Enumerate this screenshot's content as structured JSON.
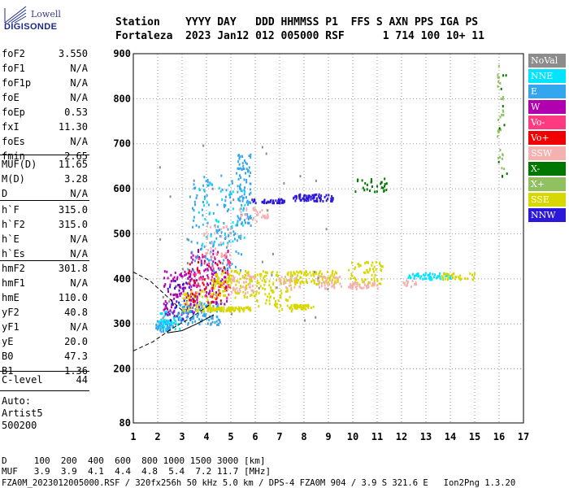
{
  "logo": {
    "line1": "Lowell",
    "line2": "DIGISONDE"
  },
  "header": {
    "line1": "Station    YYYY DAY   DDD HHMMSS P1  FFS S AXN PPS IGA PS",
    "line2": "Fortaleza  2023 Jan12 012 005000 RSF      1 714 100 10+ 11"
  },
  "params_group1": [
    {
      "name": "foF2",
      "value": "3.550"
    },
    {
      "name": "foF1",
      "value": "N/A"
    },
    {
      "name": "foF1p",
      "value": "N/A"
    },
    {
      "name": "foE",
      "value": "N/A"
    },
    {
      "name": "foEp",
      "value": "0.53"
    },
    {
      "name": "fxI",
      "value": "11.30"
    },
    {
      "name": "foEs",
      "value": "N/A"
    },
    {
      "name": "fmin",
      "value": "2.65"
    }
  ],
  "params_group2": [
    {
      "name": "MUF(D)",
      "value": "11.65"
    },
    {
      "name": "M(D)",
      "value": "3.28"
    },
    {
      "name": "D",
      "value": "N/A"
    }
  ],
  "params_group3": [
    {
      "name": "h`F",
      "value": "315.0"
    },
    {
      "name": "h`F2",
      "value": "315.0"
    },
    {
      "name": "h`E",
      "value": "N/A"
    },
    {
      "name": "h`Es",
      "value": "N/A"
    }
  ],
  "params_group4": [
    {
      "name": "hmF2",
      "value": "301.8"
    },
    {
      "name": "hmF1",
      "value": "N/A"
    },
    {
      "name": "hmE",
      "value": "110.0"
    },
    {
      "name": "yF2",
      "value": "40.8"
    },
    {
      "name": "yF1",
      "value": "N/A"
    },
    {
      "name": "yE",
      "value": "20.0"
    },
    {
      "name": "B0",
      "value": "47.3"
    },
    {
      "name": "B1",
      "value": "1.36"
    }
  ],
  "clevel": {
    "name": "C-level",
    "value": "44"
  },
  "autoscale": {
    "line1": "Auto:",
    "line2": "Artist5",
    "line3": "500200"
  },
  "legend": [
    {
      "label": "NoVal",
      "color": "#8c8c8c"
    },
    {
      "label": "NNE",
      "color": "#00e5ff"
    },
    {
      "label": "E",
      "color": "#33a6f0"
    },
    {
      "label": "W",
      "color": "#b000b0"
    },
    {
      "label": "Vo-",
      "color": "#ff3a80"
    },
    {
      "label": "Vo+",
      "color": "#f00000"
    },
    {
      "label": "SSW",
      "color": "#f5b0b0"
    },
    {
      "label": "X-",
      "color": "#007800"
    },
    {
      "label": "X+",
      "color": "#90c060"
    },
    {
      "label": "SSE",
      "color": "#d8d800"
    },
    {
      "label": "NNW",
      "color": "#2c18d8"
    }
  ],
  "footer": {
    "line1": "D     100  200  400  600  800 1000 1500 3000 [km]",
    "line2": "MUF   3.9  3.9  4.1  4.4  4.8  5.4  7.2 11.7 [MHz]",
    "line3": "FZA0M_2023012005000.RSF / 320fx256h 50 kHz 5.0 km / DPS-4 FZA0M 904 / 3.9 S 321.6 E   Ion2Png 1.3.20"
  },
  "chart_data": {
    "type": "scatter",
    "title": "",
    "xlabel": "",
    "ylabel": "",
    "xlim": [
      1,
      17
    ],
    "ylim": [
      80,
      900
    ],
    "x_ticks": [
      1,
      2,
      3,
      4,
      5,
      6,
      7,
      8,
      9,
      10,
      11,
      12,
      13,
      14,
      15,
      16,
      17
    ],
    "y_ticks": [
      80,
      200,
      300,
      400,
      500,
      600,
      700,
      800,
      900
    ],
    "grid": "dotted",
    "legend_position": "right",
    "clusters": [
      {
        "series": "E",
        "x": [
          1.9,
          2.6
        ],
        "y": [
          285,
          310
        ],
        "n": 70
      },
      {
        "series": "NNE",
        "x": [
          2.0,
          2.9
        ],
        "y": [
          290,
          330
        ],
        "n": 45
      },
      {
        "series": "W",
        "x": [
          2.2,
          3.6
        ],
        "y": [
          320,
          420
        ],
        "n": 110
      },
      {
        "series": "NNW",
        "x": [
          2.3,
          3.5
        ],
        "y": [
          310,
          400
        ],
        "n": 40
      },
      {
        "series": "E",
        "x": [
          2.8,
          4.6
        ],
        "y": [
          300,
          350
        ],
        "n": 110
      },
      {
        "series": "SSE",
        "x": [
          3.0,
          4.2
        ],
        "y": [
          330,
          380
        ],
        "n": 60
      },
      {
        "series": "W",
        "x": [
          3.3,
          4.9
        ],
        "y": [
          340,
          470
        ],
        "n": 120
      },
      {
        "series": "Vo-",
        "x": [
          3.4,
          5.0
        ],
        "y": [
          360,
          460
        ],
        "n": 60
      },
      {
        "series": "Vo+",
        "x": [
          3.2,
          4.8
        ],
        "y": [
          350,
          440
        ],
        "n": 40
      },
      {
        "series": "E",
        "x": [
          3.2,
          5.4
        ],
        "y": [
          420,
          640
        ],
        "n": 130
      },
      {
        "series": "SSW",
        "x": [
          3.8,
          5.0
        ],
        "y": [
          450,
          520
        ],
        "n": 40
      },
      {
        "series": "NNE",
        "x": [
          3.6,
          5.6
        ],
        "y": [
          480,
          620
        ],
        "n": 40
      },
      {
        "series": "SSE",
        "x": [
          4.0,
          5.8
        ],
        "y": [
          330,
          340
        ],
        "n": 90
      },
      {
        "series": "SSE",
        "x": [
          4.2,
          6.0
        ],
        "y": [
          360,
          420
        ],
        "n": 110
      },
      {
        "series": "SSW",
        "x": [
          5.0,
          6.0
        ],
        "y": [
          370,
          410
        ],
        "n": 40
      },
      {
        "series": "E",
        "x": [
          5.2,
          5.8
        ],
        "y": [
          520,
          680
        ],
        "n": 90
      },
      {
        "series": "SSW",
        "x": [
          5.3,
          6.5
        ],
        "y": [
          530,
          560
        ],
        "n": 35
      },
      {
        "series": "NNW",
        "x": [
          5.8,
          7.2
        ],
        "y": [
          570,
          580
        ],
        "n": 45
      },
      {
        "series": "SSE",
        "x": [
          6.0,
          7.5
        ],
        "y": [
          330,
          420
        ],
        "n": 110
      },
      {
        "series": "SSW",
        "x": [
          6.8,
          7.8
        ],
        "y": [
          380,
          410
        ],
        "n": 30
      },
      {
        "series": "NNW",
        "x": [
          7.5,
          9.2
        ],
        "y": [
          575,
          590
        ],
        "n": 70
      },
      {
        "series": "SSE",
        "x": [
          7.5,
          9.4
        ],
        "y": [
          390,
          420
        ],
        "n": 90
      },
      {
        "series": "SSE",
        "x": [
          7.5,
          8.4
        ],
        "y": [
          335,
          345
        ],
        "n": 35
      },
      {
        "series": "SSW",
        "x": [
          8.5,
          9.5
        ],
        "y": [
          380,
          410
        ],
        "n": 35
      },
      {
        "series": "SSE",
        "x": [
          9.8,
          11.2
        ],
        "y": [
          385,
          440
        ],
        "n": 70
      },
      {
        "series": "SSW",
        "x": [
          9.8,
          11.0
        ],
        "y": [
          380,
          395
        ],
        "n": 40
      },
      {
        "series": "X-",
        "x": [
          10.0,
          11.4
        ],
        "y": [
          595,
          625
        ],
        "n": 30
      },
      {
        "series": "NNE",
        "x": [
          12.2,
          14.0
        ],
        "y": [
          400,
          415
        ],
        "n": 55
      },
      {
        "series": "SSE",
        "x": [
          13.6,
          15.0
        ],
        "y": [
          400,
          415
        ],
        "n": 35
      },
      {
        "series": "SSW",
        "x": [
          12.0,
          12.6
        ],
        "y": [
          385,
          400
        ],
        "n": 15
      },
      {
        "series": "X+",
        "x": [
          15.9,
          16.2
        ],
        "y": [
          620,
          890
        ],
        "n": 30
      },
      {
        "series": "X-",
        "x": [
          15.9,
          16.3
        ],
        "y": [
          600,
          880
        ],
        "n": 10
      },
      {
        "series": "NoVal",
        "x": [
          2.0,
          9.0
        ],
        "y": [
          300,
          700
        ],
        "n": 35
      }
    ],
    "trace_lines": [
      {
        "style": "dashed",
        "x": [
          1.0,
          1.7,
          2.4,
          3.0
        ],
        "y": [
          415,
          395,
          360,
          330
        ]
      },
      {
        "style": "dashed",
        "x": [
          1.0,
          1.8,
          2.6,
          3.4,
          4.2
        ],
        "y": [
          240,
          260,
          290,
          315,
          345
        ]
      },
      {
        "style": "solid",
        "x": [
          2.4,
          3.0,
          3.6,
          4.3
        ],
        "y": [
          280,
          285,
          300,
          320
        ]
      }
    ]
  }
}
